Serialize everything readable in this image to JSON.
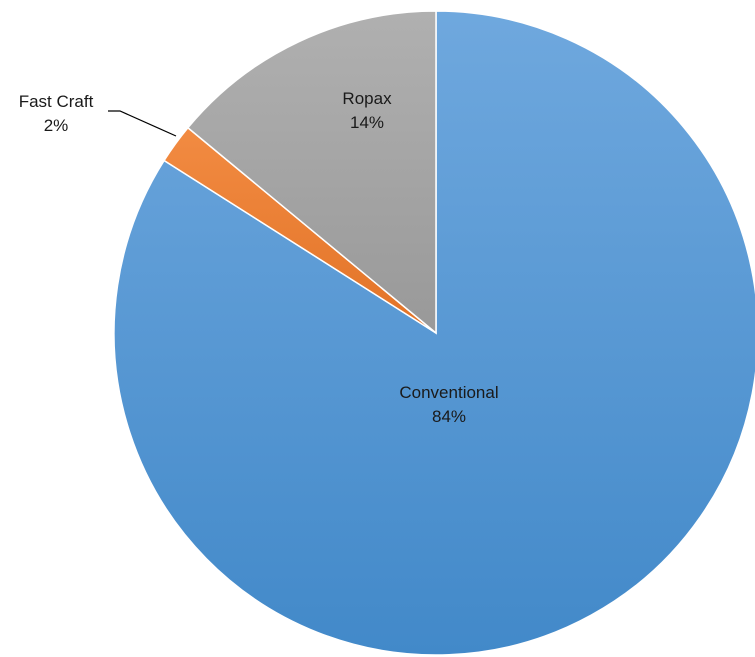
{
  "chart_data": {
    "type": "pie",
    "title": "",
    "start_angle_deg": 0,
    "direction": "clockwise",
    "slices": [
      {
        "name": "Conventional",
        "value": 84,
        "label": "84%",
        "color": "#5B9BD5"
      },
      {
        "name": "Fast Craft",
        "value": 2,
        "label": "2%",
        "color": "#ED7D31"
      },
      {
        "name": "Ropax",
        "value": 14,
        "label": "14%",
        "color": "#A5A5A5"
      }
    ]
  }
}
